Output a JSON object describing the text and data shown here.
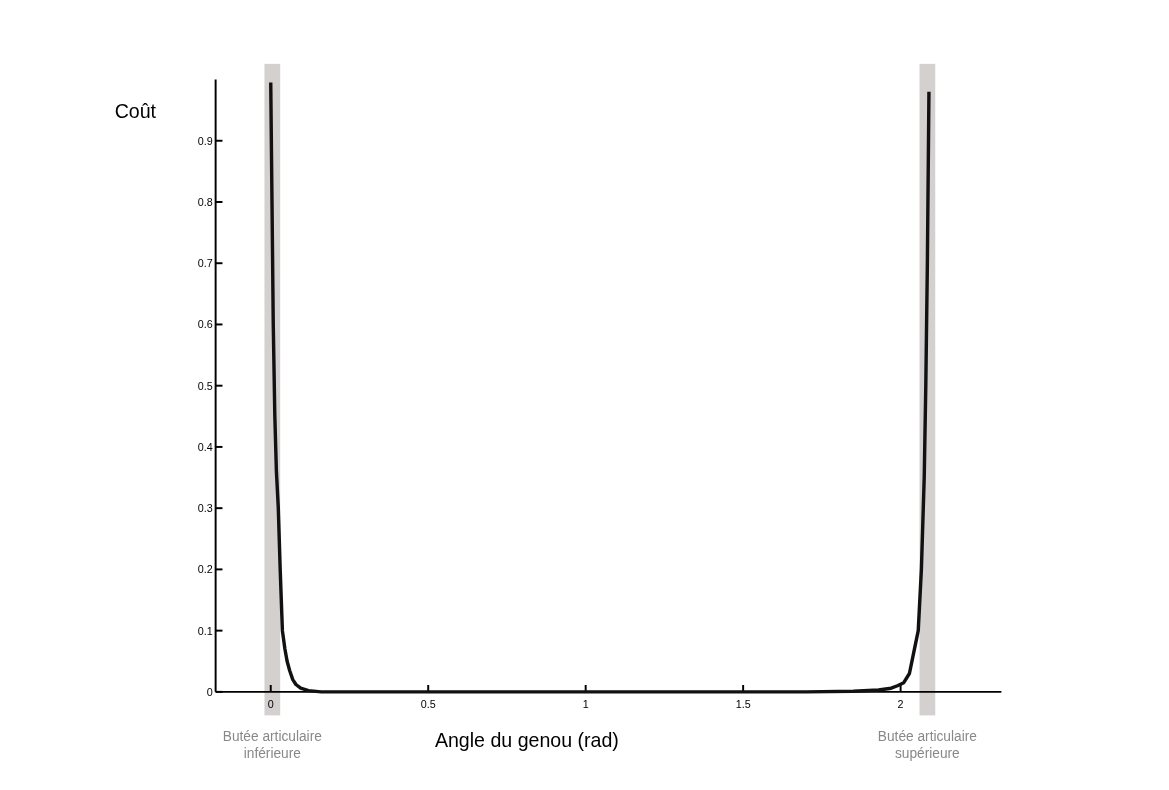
{
  "chart_data": {
    "type": "line",
    "xlabel": "Angle du genou (rad)",
    "ylabel": "Coût",
    "xlim": [
      -0.175,
      2.32
    ],
    "ylim": [
      0,
      1
    ],
    "xticks": [
      0,
      0.5,
      1,
      1.5,
      2
    ],
    "yticks": [
      0,
      0.1,
      0.2,
      0.3,
      0.4,
      0.5,
      0.6,
      0.7,
      0.8,
      0.9
    ],
    "grid": false,
    "marker": "none",
    "line_style": "solid",
    "series": [
      {
        "color": "#111111",
        "x": [
          0,
          0.004,
          0.008,
          0.013,
          0.018,
          0.024,
          0.03,
          0.037,
          0.045,
          0.052,
          0.06,
          0.07,
          0.08,
          0.095,
          0.12,
          0.16,
          0.3,
          0.6,
          1,
          1.4,
          1.7,
          1.85,
          1.93,
          1.97,
          1.99,
          2.01,
          2.028,
          2.04,
          2.056,
          2.066,
          2.075,
          2.08,
          2.085,
          2.09
        ],
        "values": [
          0.995,
          0.8,
          0.6,
          0.45,
          0.36,
          0.3,
          0.2,
          0.1,
          0.07,
          0.05,
          0.035,
          0.02,
          0.012,
          0.006,
          0.002,
          0,
          0,
          0,
          0,
          0,
          0,
          0.001,
          0.003,
          0.006,
          0.01,
          0.015,
          0.03,
          0.06,
          0.1,
          0.2,
          0.35,
          0.5,
          0.7,
          0.98
        ]
      }
    ],
    "bands": [
      {
        "axis": "x",
        "from": -0.02,
        "to": 0.03,
        "label": "Butée articulaire inférieure",
        "color": "#d4d0d0"
      },
      {
        "axis": "x",
        "from": 2.06,
        "to": 2.11,
        "label": "Butée articulaire supérieure",
        "color": "#d4d0d0"
      }
    ]
  }
}
